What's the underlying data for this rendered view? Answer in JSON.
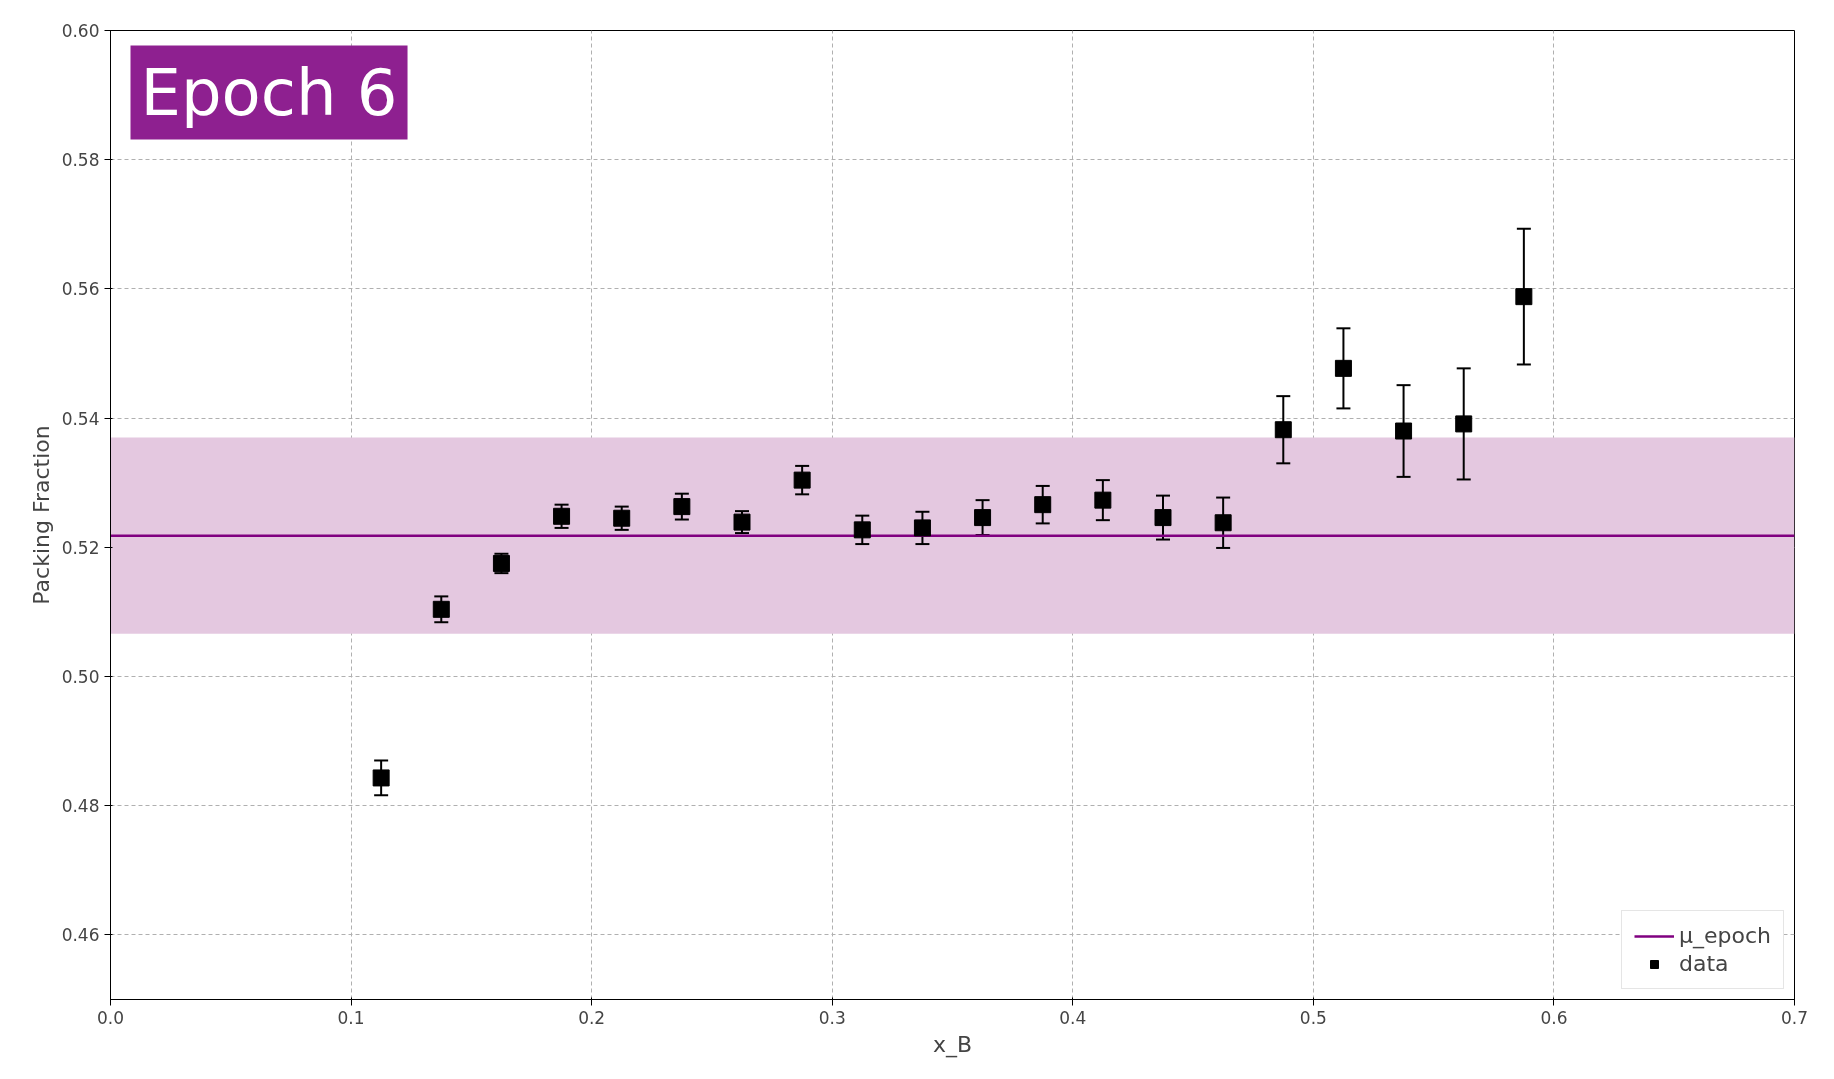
{
  "chart_data": {
    "type": "scatter",
    "xlabel": "x_B",
    "ylabel": "Packing Fraction",
    "annotations": [
      "Epoch 6"
    ],
    "x": [
      0.1125,
      0.1375,
      0.1625,
      0.1875,
      0.2125,
      0.2375,
      0.2625,
      0.2875,
      0.3125,
      0.3375,
      0.3625,
      0.3875,
      0.4125,
      0.4375,
      0.4625,
      0.4875,
      0.5125,
      0.5375,
      0.5625,
      0.5875
    ],
    "series": [
      {
        "name": "data",
        "color": "#000000",
        "values": [
          0.4843,
          0.5104,
          0.5175,
          0.5248,
          0.5245,
          0.5263,
          0.5239,
          0.5304,
          0.5227,
          0.523,
          0.5246,
          0.5266,
          0.5273,
          0.5246,
          0.5238,
          0.5382,
          0.5477,
          0.538,
          0.5391,
          0.5588
        ],
        "errors": [
          0.0027,
          0.002,
          0.0015,
          0.0018,
          0.0018,
          0.002,
          0.0017,
          0.0022,
          0.0022,
          0.0025,
          0.0027,
          0.0029,
          0.0031,
          0.0034,
          0.0039,
          0.0052,
          0.0062,
          0.0071,
          0.0086,
          0.0105
        ]
      }
    ],
    "marker": "square",
    "ref_lines": [
      {
        "axis": "y",
        "value": 0.5218,
        "label": "μ_epoch",
        "color": "#800080",
        "line_style": "solid"
      }
    ],
    "bands": [
      {
        "axis": "y",
        "from": 0.5066,
        "to": 0.537,
        "color": "#e4c8e0"
      }
    ],
    "xlim": [
      0,
      0.7
    ],
    "ylim": [
      0.45,
      0.6
    ],
    "xticks": [
      {
        "value": 0,
        "label": "0.0"
      },
      0.1,
      0.2,
      0.3,
      0.4,
      0.5,
      0.6,
      0.7
    ],
    "yticks": [
      0.46,
      0.48,
      {
        "value": 0.5,
        "label": "0.50"
      },
      0.52,
      0.54,
      0.56,
      0.58,
      {
        "value": 0.6,
        "label": "0.60"
      }
    ],
    "grid": true,
    "legend": "bottom right"
  }
}
